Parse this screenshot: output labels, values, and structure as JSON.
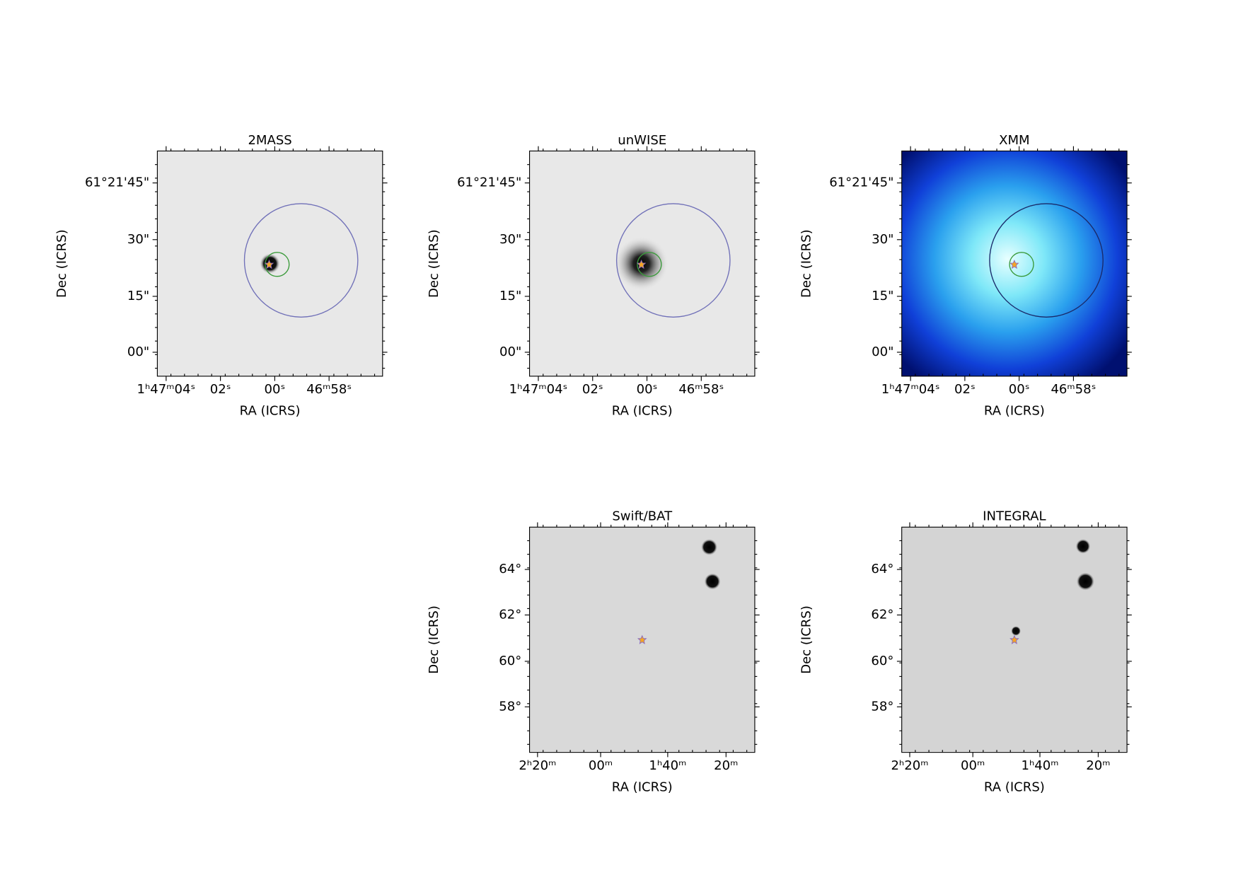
{
  "panels": [
    {
      "title": "2MASS",
      "xlabel": "RA (ICRS)",
      "ylabel": "Dec (ICRS)",
      "xticks": [
        "1ʰ47ᵐ04ˢ",
        "02ˢ",
        "00ˢ",
        "46ᵐ58ˢ"
      ],
      "yticks": [
        "61°21'45\"",
        "30\"",
        "15\"",
        "00\""
      ]
    },
    {
      "title": "unWISE",
      "xlabel": "RA (ICRS)",
      "ylabel": "Dec (ICRS)",
      "xticks": [
        "1ʰ47ᵐ04ˢ",
        "02ˢ",
        "00ˢ",
        "46ᵐ58ˢ"
      ],
      "yticks": [
        "61°21'45\"",
        "30\"",
        "15\"",
        "00\""
      ]
    },
    {
      "title": "XMM",
      "xlabel": "RA (ICRS)",
      "ylabel": "Dec (ICRS)",
      "xticks": [
        "1ʰ47ᵐ04ˢ",
        "02ˢ",
        "00ˢ",
        "46ᵐ58ˢ"
      ],
      "yticks": [
        "61°21'45\"",
        "30\"",
        "15\"",
        "00\""
      ]
    },
    {
      "title": "Swift/BAT",
      "xlabel": "RA (ICRS)",
      "ylabel": "Dec (ICRS)",
      "xticks": [
        "2ʰ20ᵐ",
        "00ᵐ",
        "1ʰ40ᵐ",
        "20ᵐ"
      ],
      "yticks": [
        "64°",
        "62°",
        "60°",
        "58°"
      ]
    },
    {
      "title": "INTEGRAL",
      "xlabel": "RA (ICRS)",
      "ylabel": "Dec (ICRS)",
      "xticks": [
        "2ʰ20ᵐ",
        "00ᵐ",
        "1ʰ40ᵐ",
        "20ᵐ"
      ],
      "yticks": [
        "64°",
        "62°",
        "60°",
        "58°"
      ]
    }
  ]
}
